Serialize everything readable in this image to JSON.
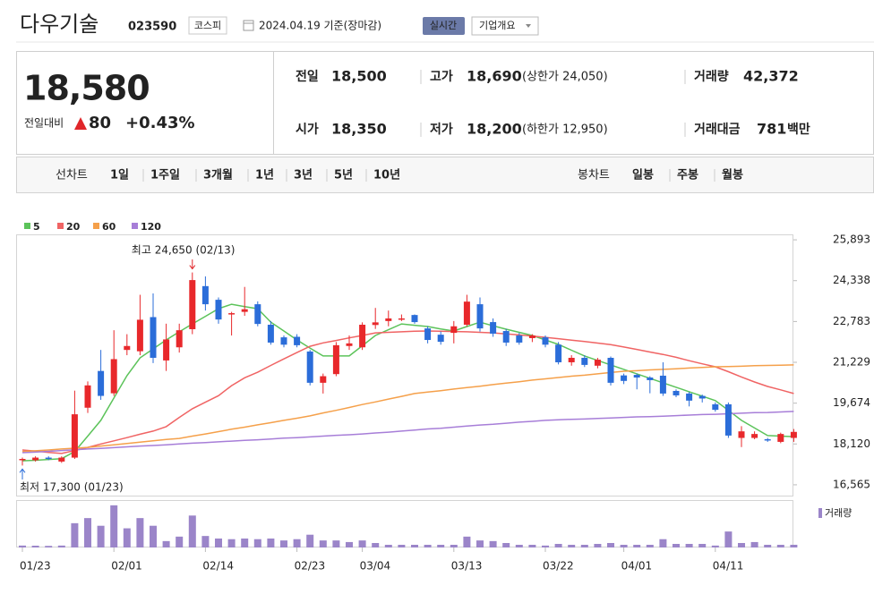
{
  "header": {
    "name": "다우기술",
    "code": "023590",
    "market": "코스피",
    "date": "2024.04.19 기준(장마감)",
    "realtime": "실시간",
    "company": "기업개요"
  },
  "quote": {
    "price": "18,580",
    "change_label": "전일대비",
    "change": "80",
    "change_pct": "+0.43%",
    "items": [
      {
        "label": "전일",
        "value": "18,500"
      },
      {
        "label": "고가",
        "value": "18,690",
        "note": "(상한가 24,050)"
      },
      {
        "label": "거래량",
        "value": "42,372"
      },
      {
        "label": "시가",
        "value": "18,350"
      },
      {
        "label": "저가",
        "value": "18,200",
        "note": "(하한가 12,950)"
      },
      {
        "label": "거래대금",
        "value": "781",
        "unit": "백만"
      }
    ]
  },
  "tabs": {
    "line_label": "선차트",
    "line": [
      "1일",
      "1주일",
      "3개월",
      "1년",
      "3년",
      "5년",
      "10년"
    ],
    "candle_label": "봉차트",
    "candle": [
      "일봉",
      "주봉",
      "월봉"
    ]
  },
  "chart_data": {
    "type": "candlestick",
    "categories": [
      "01/23",
      null,
      null,
      null,
      null,
      null,
      null,
      "02/01",
      null,
      null,
      null,
      null,
      null,
      null,
      "02/14",
      null,
      null,
      null,
      null,
      null,
      null,
      "02/23",
      null,
      null,
      null,
      null,
      "03/04",
      null,
      null,
      null,
      null,
      null,
      null,
      "03/13",
      null,
      null,
      null,
      null,
      null,
      null,
      "03/22",
      null,
      null,
      null,
      null,
      null,
      "04/01",
      null,
      null,
      null,
      null,
      null,
      null,
      "04/11",
      null,
      null,
      null,
      null,
      null,
      null
    ],
    "open": [
      17500,
      17500,
      17600,
      17450,
      17600,
      19500,
      20900,
      20050,
      21700,
      21650,
      22950,
      21300,
      21800,
      22490,
      24130,
      23610,
      23050,
      23150,
      23440,
      22660,
      22180,
      22200,
      21640,
      20450,
      20780,
      21850,
      21800,
      22650,
      22800,
      22850,
      23030,
      22520,
      22280,
      22350,
      22660,
      23440,
      22760,
      22420,
      22250,
      22150,
      22180,
      21900,
      21230,
      21400,
      21100,
      21400,
      20730,
      20750,
      20650,
      20720,
      20140,
      20040,
      19950,
      19630,
      19630,
      18350,
      18350,
      18300,
      18200,
      18350
    ],
    "high": [
      17600,
      17650,
      17650,
      17650,
      20150,
      20500,
      21700,
      22450,
      22300,
      23800,
      23850,
      22700,
      22700,
      24650,
      24500,
      23700,
      23150,
      24100,
      23550,
      22800,
      22250,
      22300,
      21700,
      20800,
      22000,
      22250,
      22750,
      23300,
      23200,
      23050,
      23050,
      22600,
      22400,
      22800,
      23800,
      23700,
      22900,
      22500,
      22350,
      22300,
      22250,
      22000,
      21500,
      21500,
      21400,
      21450,
      20800,
      20800,
      20700,
      21230,
      20200,
      20100,
      20000,
      19700,
      19700,
      18800,
      18600,
      18350,
      18550,
      18690
    ],
    "low": [
      17300,
      17450,
      17500,
      17400,
      17550,
      19300,
      19800,
      19950,
      21500,
      21500,
      21200,
      20900,
      21600,
      22300,
      23200,
      22700,
      22250,
      23000,
      22600,
      21900,
      21800,
      21800,
      20350,
      20040,
      20700,
      21700,
      21700,
      22500,
      22600,
      22800,
      22700,
      21950,
      21900,
      21950,
      22600,
      22400,
      22200,
      21850,
      21900,
      22000,
      21800,
      21150,
      21100,
      21050,
      21000,
      20350,
      20400,
      20200,
      20050,
      19950,
      19900,
      19550,
      19700,
      19350,
      18350,
      18000,
      18300,
      18200,
      18150,
      18200
    ],
    "close": [
      17550,
      17600,
      17550,
      17600,
      19250,
      20350,
      19950,
      21350,
      21850,
      22850,
      21400,
      22100,
      22450,
      24360,
      23440,
      22860,
      23100,
      23250,
      22690,
      21980,
      21900,
      21880,
      20450,
      20700,
      21880,
      21950,
      22660,
      22750,
      22900,
      22900,
      22760,
      22080,
      22010,
      22600,
      23540,
      22520,
      22320,
      21980,
      21980,
      22250,
      21900,
      21230,
      21400,
      21130,
      21330,
      20450,
      20520,
      20650,
      20550,
      20040,
      19970,
      19770,
      19850,
      19420,
      18440,
      18600,
      18500,
      18250,
      18500,
      18580
    ],
    "up_color": "#e8282b",
    "down_color": "#2b6dd9",
    "series": [
      {
        "name": "5",
        "color": "#5cc35a",
        "values": [
          17480,
          17500,
          17530,
          17560,
          17830,
          18420,
          19020,
          19870,
          20720,
          21400,
          21740,
          22080,
          22390,
          22690,
          22980,
          23270,
          23440,
          23350,
          23270,
          22760,
          22420,
          22080,
          21770,
          21470,
          21470,
          21470,
          21860,
          22250,
          22470,
          22690,
          22640,
          22590,
          22500,
          22420,
          22590,
          22760,
          22620,
          22490,
          22370,
          22250,
          22080,
          21910,
          21690,
          21470,
          21300,
          21130,
          20960,
          20790,
          20620,
          20450,
          20280,
          20110,
          19940,
          19770,
          19400,
          19020,
          18730,
          18440,
          18420,
          18400
        ]
      },
      {
        "name": "20",
        "color": "#f06464",
        "values": [
          17890,
          17850,
          17800,
          17760,
          17870,
          17990,
          18120,
          18240,
          18360,
          18490,
          18610,
          18780,
          19130,
          19460,
          19710,
          19960,
          20340,
          20640,
          20850,
          21110,
          21360,
          21600,
          21840,
          21970,
          22060,
          22160,
          22250,
          22350,
          22370,
          22390,
          22410,
          22420,
          22410,
          22400,
          22390,
          22370,
          22350,
          22310,
          22270,
          22230,
          22180,
          22130,
          22070,
          22020,
          21960,
          21900,
          21810,
          21720,
          21620,
          21530,
          21420,
          21290,
          21170,
          21060,
          20870,
          20670,
          20480,
          20310,
          20180,
          20040
        ]
      },
      {
        "name": "60",
        "color": "#f5a04a",
        "values": [
          17830,
          17860,
          17890,
          17930,
          17960,
          17990,
          18040,
          18090,
          18140,
          18190,
          18240,
          18290,
          18330,
          18420,
          18500,
          18590,
          18680,
          18760,
          18850,
          18930,
          19020,
          19100,
          19190,
          19300,
          19400,
          19510,
          19620,
          19720,
          19830,
          19930,
          20040,
          20100,
          20150,
          20210,
          20270,
          20320,
          20380,
          20440,
          20490,
          20550,
          20600,
          20650,
          20700,
          20740,
          20790,
          20840,
          20890,
          20910,
          20940,
          20960,
          20980,
          21010,
          21030,
          21060,
          21070,
          21080,
          21100,
          21110,
          21120,
          21130
        ]
      },
      {
        "name": "120",
        "color": "#a77ed8",
        "values": [
          17790,
          17810,
          17840,
          17870,
          17900,
          17930,
          17950,
          17980,
          18010,
          18040,
          18060,
          18090,
          18120,
          18150,
          18170,
          18200,
          18230,
          18260,
          18280,
          18310,
          18340,
          18360,
          18390,
          18420,
          18450,
          18470,
          18500,
          18540,
          18570,
          18610,
          18650,
          18690,
          18720,
          18760,
          18800,
          18840,
          18870,
          18910,
          18950,
          18980,
          19020,
          19040,
          19060,
          19070,
          19090,
          19110,
          19130,
          19150,
          19160,
          19180,
          19200,
          19220,
          19240,
          19250,
          19270,
          19290,
          19310,
          19320,
          19340,
          19360
        ]
      }
    ],
    "volume": {
      "name": "거래량",
      "color": "#9b85c9",
      "ylim": [
        0,
        700000
      ],
      "values": [
        30000,
        28000,
        25000,
        30000,
        380000,
        460000,
        340000,
        660000,
        300000,
        460000,
        340000,
        100000,
        170000,
        500000,
        180000,
        140000,
        130000,
        140000,
        130000,
        140000,
        110000,
        130000,
        200000,
        110000,
        110000,
        85000,
        110000,
        70000,
        42000,
        42000,
        42000,
        42000,
        42000,
        42000,
        170000,
        110000,
        100000,
        70000,
        42000,
        42000,
        30000,
        56000,
        42000,
        42000,
        56000,
        70000,
        42000,
        42000,
        42000,
        130000,
        56000,
        56000,
        56000,
        30000,
        250000,
        70000,
        85000,
        42000,
        42000,
        42372
      ]
    },
    "ylim": [
      16120,
      26100
    ],
    "yticks": [
      {
        "value": 25893,
        "label": "25,893"
      },
      {
        "value": 24338,
        "label": "24,338"
      },
      {
        "value": 22783,
        "label": "22,783"
      },
      {
        "value": 21229,
        "label": "21,229"
      },
      {
        "value": 19674,
        "label": "19,674"
      },
      {
        "value": 18120,
        "label": "18,120"
      },
      {
        "value": 16565,
        "label": "16,565"
      }
    ],
    "grid": false,
    "annotations": [
      {
        "text": "최고 24,650 (02/13)",
        "color": "#e0262a"
      },
      {
        "text": "최저 17,300 (01/23)",
        "color": "#2b6dd9"
      }
    ]
  }
}
